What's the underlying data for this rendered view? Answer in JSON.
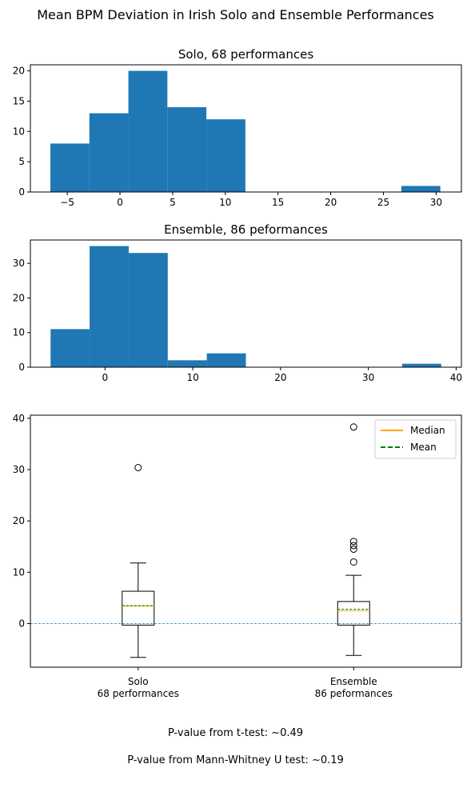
{
  "suptitle": "Mean BPM Deviation in Irish Solo and Ensemble Performances",
  "chart_data": [
    {
      "type": "bar",
      "title": "Solo, 68 performances",
      "xlabel": "",
      "ylabel": "",
      "xlim": [
        -8.5,
        32.4
      ],
      "ylim": [
        0,
        21
      ],
      "xticks": [
        -5,
        0,
        5,
        10,
        15,
        20,
        25,
        30
      ],
      "yticks": [
        0,
        5,
        10,
        15,
        20
      ],
      "bins": [
        -6.6,
        -2.9,
        0.8,
        4.5,
        8.2,
        11.9,
        15.6,
        19.3,
        23.0,
        26.7,
        30.4
      ],
      "counts": [
        8,
        13,
        20,
        14,
        12,
        0,
        0,
        0,
        0,
        1
      ],
      "color": "#1f77b4"
    },
    {
      "type": "bar",
      "title": "Ensemble, 86 peformances",
      "xlabel": "",
      "ylabel": "",
      "xlim": [
        -8.5,
        40.6
      ],
      "ylim": [
        0,
        36.75
      ],
      "xticks": [
        0,
        10,
        20,
        30,
        40
      ],
      "yticks": [
        0,
        10,
        20,
        30
      ],
      "bins": [
        -6.2,
        -1.75,
        2.7,
        7.15,
        11.6,
        16.05,
        20.5,
        24.95,
        29.4,
        33.85,
        38.3
      ],
      "counts": [
        11,
        35,
        33,
        2,
        4,
        0,
        0,
        0,
        0,
        1
      ],
      "color": "#1f77b4"
    },
    {
      "type": "box",
      "categories": [
        "Solo\n68 performances",
        "Ensemble\n86 peformances"
      ],
      "ylim": [
        -8.5,
        40.6
      ],
      "yticks": [
        0,
        10,
        20,
        30,
        40
      ],
      "reference_line": 0,
      "legend": {
        "position": "top-right",
        "entries": [
          "Median",
          "Mean"
        ]
      },
      "median_color": "#ffa500",
      "mean_color": "#008000",
      "ref_color": "#1f77b4",
      "series": [
        {
          "whisker_low": -6.6,
          "q1": -0.3,
          "median": 3.4,
          "mean": 3.5,
          "q3": 6.3,
          "whisker_high": 11.8,
          "outliers": [
            30.4
          ]
        },
        {
          "whisker_low": -6.2,
          "q1": -0.3,
          "median": 2.5,
          "mean": 2.8,
          "q3": 4.3,
          "whisker_high": 9.4,
          "outliers": [
            12.0,
            14.5,
            15.2,
            16.0,
            38.3
          ]
        }
      ]
    }
  ],
  "pvalues": {
    "ttest": "P-value from t-test: ~0.49",
    "mannwhitney": "P-value from Mann-Whitney U test: ~0.19"
  }
}
